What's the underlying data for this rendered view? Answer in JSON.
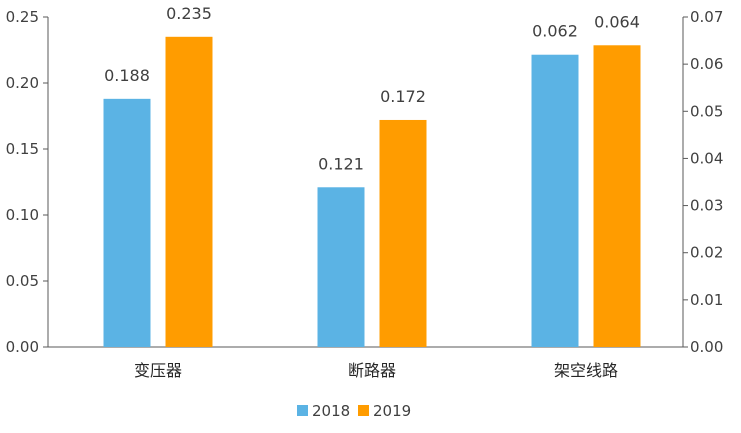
{
  "chart_data": {
    "type": "bar",
    "categories": [
      "变压器",
      "断路器",
      "架空线路"
    ],
    "series": [
      {
        "name": "2018",
        "values": [
          0.188,
          0.121,
          0.062
        ],
        "axis": [
          "left",
          "left",
          "right"
        ],
        "labels": [
          "0.188",
          "0.121",
          "0.062"
        ],
        "color": "#5BB3E4"
      },
      {
        "name": "2019",
        "values": [
          0.235,
          0.172,
          0.064
        ],
        "axis": [
          "left",
          "left",
          "right"
        ],
        "labels": [
          "0.235",
          "0.172",
          "0.064"
        ],
        "color": "#FF9C00"
      }
    ],
    "y_left": {
      "lim": [
        0,
        0.25
      ],
      "ticks": [
        "0.00",
        "0.05",
        "0.10",
        "0.15",
        "0.20",
        "0.25"
      ]
    },
    "y_right": {
      "lim": [
        0,
        0.07
      ],
      "ticks": [
        "0.00",
        "0.01",
        "0.02",
        "0.03",
        "0.04",
        "0.05",
        "0.06",
        "0.07"
      ]
    },
    "grid": false,
    "legend": "bottom-center"
  }
}
